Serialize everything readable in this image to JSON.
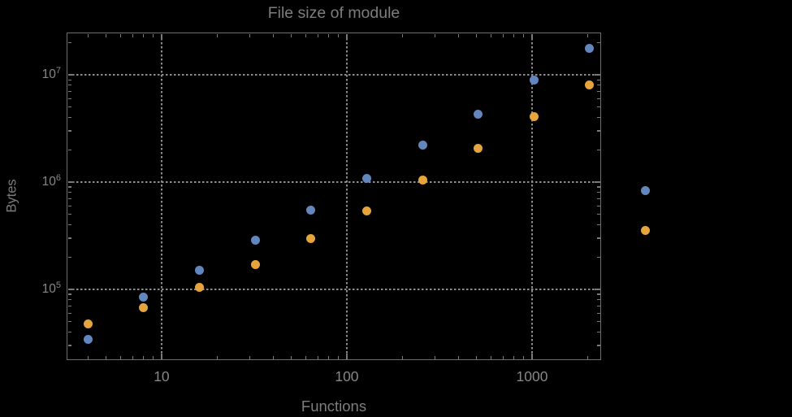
{
  "window": {
    "background": "#000000"
  },
  "style": {
    "series_blue": "#6286be",
    "series_orange": "#e5a43c",
    "frame_color": "#6e6e6e",
    "grid_color": "#8c8c8c",
    "tick_color": "#7a7a7a",
    "text_color": "#7d7d7d",
    "tick_label_color": "#878787",
    "background": "#000000"
  },
  "chart_data": {
    "type": "scatter",
    "title": "File size of module",
    "xlabel": "Functions",
    "ylabel": "Bytes",
    "x_scale": "log",
    "y_scale": "log",
    "grid": "dotted gridlines at decades only",
    "legend_position": "none",
    "marker": "filled-circle",
    "marker_size_px": 11,
    "x": [
      4,
      8,
      16,
      32,
      64,
      128,
      256,
      512,
      1024,
      2048,
      4096
    ],
    "series": [
      {
        "name": "series-1-blue",
        "color": "#6286be",
        "values": [
          34000,
          84000,
          150000,
          285000,
          550000,
          1090000,
          2200000,
          4330000,
          8900000,
          17500000,
          830000
        ]
      },
      {
        "name": "series-2-orange",
        "color": "#e5a43c",
        "values": [
          48000,
          68000,
          104000,
          169000,
          295000,
          537000,
          1040000,
          2050000,
          4040000,
          8000000,
          357000
        ]
      }
    ],
    "xlim": [
      3.07,
      2360
    ],
    "ylim": [
      21900,
      24800000
    ],
    "x_major_ticks": [
      10,
      100,
      1000
    ],
    "x_tick_labels": [
      "10",
      "100",
      "1000"
    ],
    "y_major_ticks": [
      100000,
      1000000,
      10000000
    ],
    "y_tick_labels": [
      {
        "base": "10",
        "exp": "5"
      },
      {
        "base": "10",
        "exp": "6"
      },
      {
        "base": "10",
        "exp": "7"
      }
    ],
    "note": "points at x=4096 fall outside the plot frame (unclipped)"
  }
}
